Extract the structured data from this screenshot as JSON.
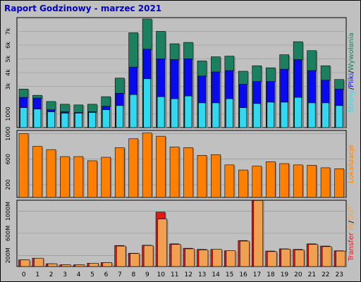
{
  "window": {
    "title": "Raport Godzinowy -  marzec 2021"
  },
  "colors": {
    "background": "#c0c0c0",
    "pages": "#1a8060",
    "files": "#0a0af0",
    "hits": "#30d8f0",
    "sites": "#ff8000",
    "kbin": "#e01818",
    "kbout": "#f0a050",
    "title": "#0000c8"
  },
  "chart_data": [
    {
      "type": "bar",
      "categories": [
        "0",
        "1",
        "2",
        "3",
        "4",
        "5",
        "6",
        "7",
        "8",
        "9",
        "10",
        "11",
        "12",
        "13",
        "14",
        "15",
        "16",
        "17",
        "18",
        "19",
        "20",
        "21",
        "22",
        "23"
      ],
      "ylim": [
        0,
        8000
      ],
      "yticks": [
        {
          "value": 1000,
          "label": "1000"
        },
        {
          "value": 3000,
          "label": "3k"
        },
        {
          "value": 4000,
          "label": "4k"
        },
        {
          "value": 5000,
          "label": "5k"
        },
        {
          "value": 6000,
          "label": "6k"
        },
        {
          "value": 7000,
          "label": "7k"
        }
      ],
      "side_label": [
        "Strony",
        "/",
        "Pliki",
        "/",
        "Wywołania"
      ],
      "series": [
        {
          "name": "Strony",
          "values": [
            2800,
            2350,
            1900,
            1700,
            1650,
            1700,
            2250,
            3600,
            6900,
            7900,
            7000,
            6100,
            6200,
            4850,
            5150,
            5200,
            4100,
            4500,
            4350,
            5300,
            6250,
            5600,
            4500,
            3500
          ]
        },
        {
          "name": "Pliki",
          "values": [
            2200,
            2150,
            1300,
            1150,
            1100,
            1150,
            1550,
            2500,
            4400,
            5700,
            5000,
            4950,
            5000,
            3750,
            4050,
            4150,
            3150,
            3350,
            3350,
            4250,
            4950,
            4150,
            3450,
            2800
          ]
        },
        {
          "name": "Wywołania",
          "values": [
            1450,
            1350,
            1150,
            1050,
            1050,
            1100,
            1300,
            1600,
            2400,
            3550,
            2250,
            2100,
            2300,
            1800,
            1800,
            2100,
            1450,
            1750,
            1850,
            1850,
            2200,
            1800,
            1800,
            1600
          ]
        }
      ]
    },
    {
      "type": "bar",
      "categories": [
        "0",
        "1",
        "2",
        "3",
        "4",
        "5",
        "6",
        "7",
        "8",
        "9",
        "10",
        "11",
        "12",
        "13",
        "14",
        "15",
        "16",
        "17",
        "18",
        "19",
        "20",
        "21",
        "22",
        "23"
      ],
      "ylim": [
        0,
        1050
      ],
      "yticks": [
        {
          "value": 200,
          "label": "200"
        },
        {
          "value": 600,
          "label": "600"
        },
        {
          "value": 1000,
          "label": "1000"
        }
      ],
      "side_label": [
        "Lokalizacje"
      ],
      "series": [
        {
          "name": "Lokalizacje",
          "values": [
            1000,
            800,
            750,
            640,
            640,
            575,
            630,
            780,
            920,
            1010,
            960,
            790,
            780,
            660,
            670,
            510,
            430,
            490,
            560,
            530,
            510,
            505,
            465,
            450
          ]
        }
      ]
    },
    {
      "type": "bar",
      "categories": [
        "0",
        "1",
        "2",
        "3",
        "4",
        "5",
        "6",
        "7",
        "8",
        "9",
        "10",
        "11",
        "12",
        "13",
        "14",
        "15",
        "16",
        "17",
        "18",
        "19",
        "20",
        "21",
        "22",
        "23"
      ],
      "ylim": [
        0,
        1200
      ],
      "yticks": [
        {
          "value": 200,
          "label": "200M"
        },
        {
          "value": 600,
          "label": "600M"
        },
        {
          "value": 1000,
          "label": "1000M"
        }
      ],
      "side_label": [
        "Transfer",
        " IN",
        "/",
        "OUT",
        " "
      ],
      "series": [
        {
          "name": "IN",
          "values": [
            120,
            150,
            50,
            30,
            30,
            60,
            70,
            380,
            240,
            385,
            985,
            410,
            330,
            310,
            310,
            285,
            470,
            1200,
            280,
            320,
            310,
            410,
            370,
            285
          ]
        },
        {
          "name": "OUT",
          "values": [
            120,
            150,
            50,
            30,
            30,
            60,
            70,
            370,
            235,
            380,
            860,
            400,
            320,
            300,
            310,
            285,
            460,
            1195,
            270,
            315,
            300,
            400,
            360,
            280
          ]
        }
      ]
    }
  ]
}
